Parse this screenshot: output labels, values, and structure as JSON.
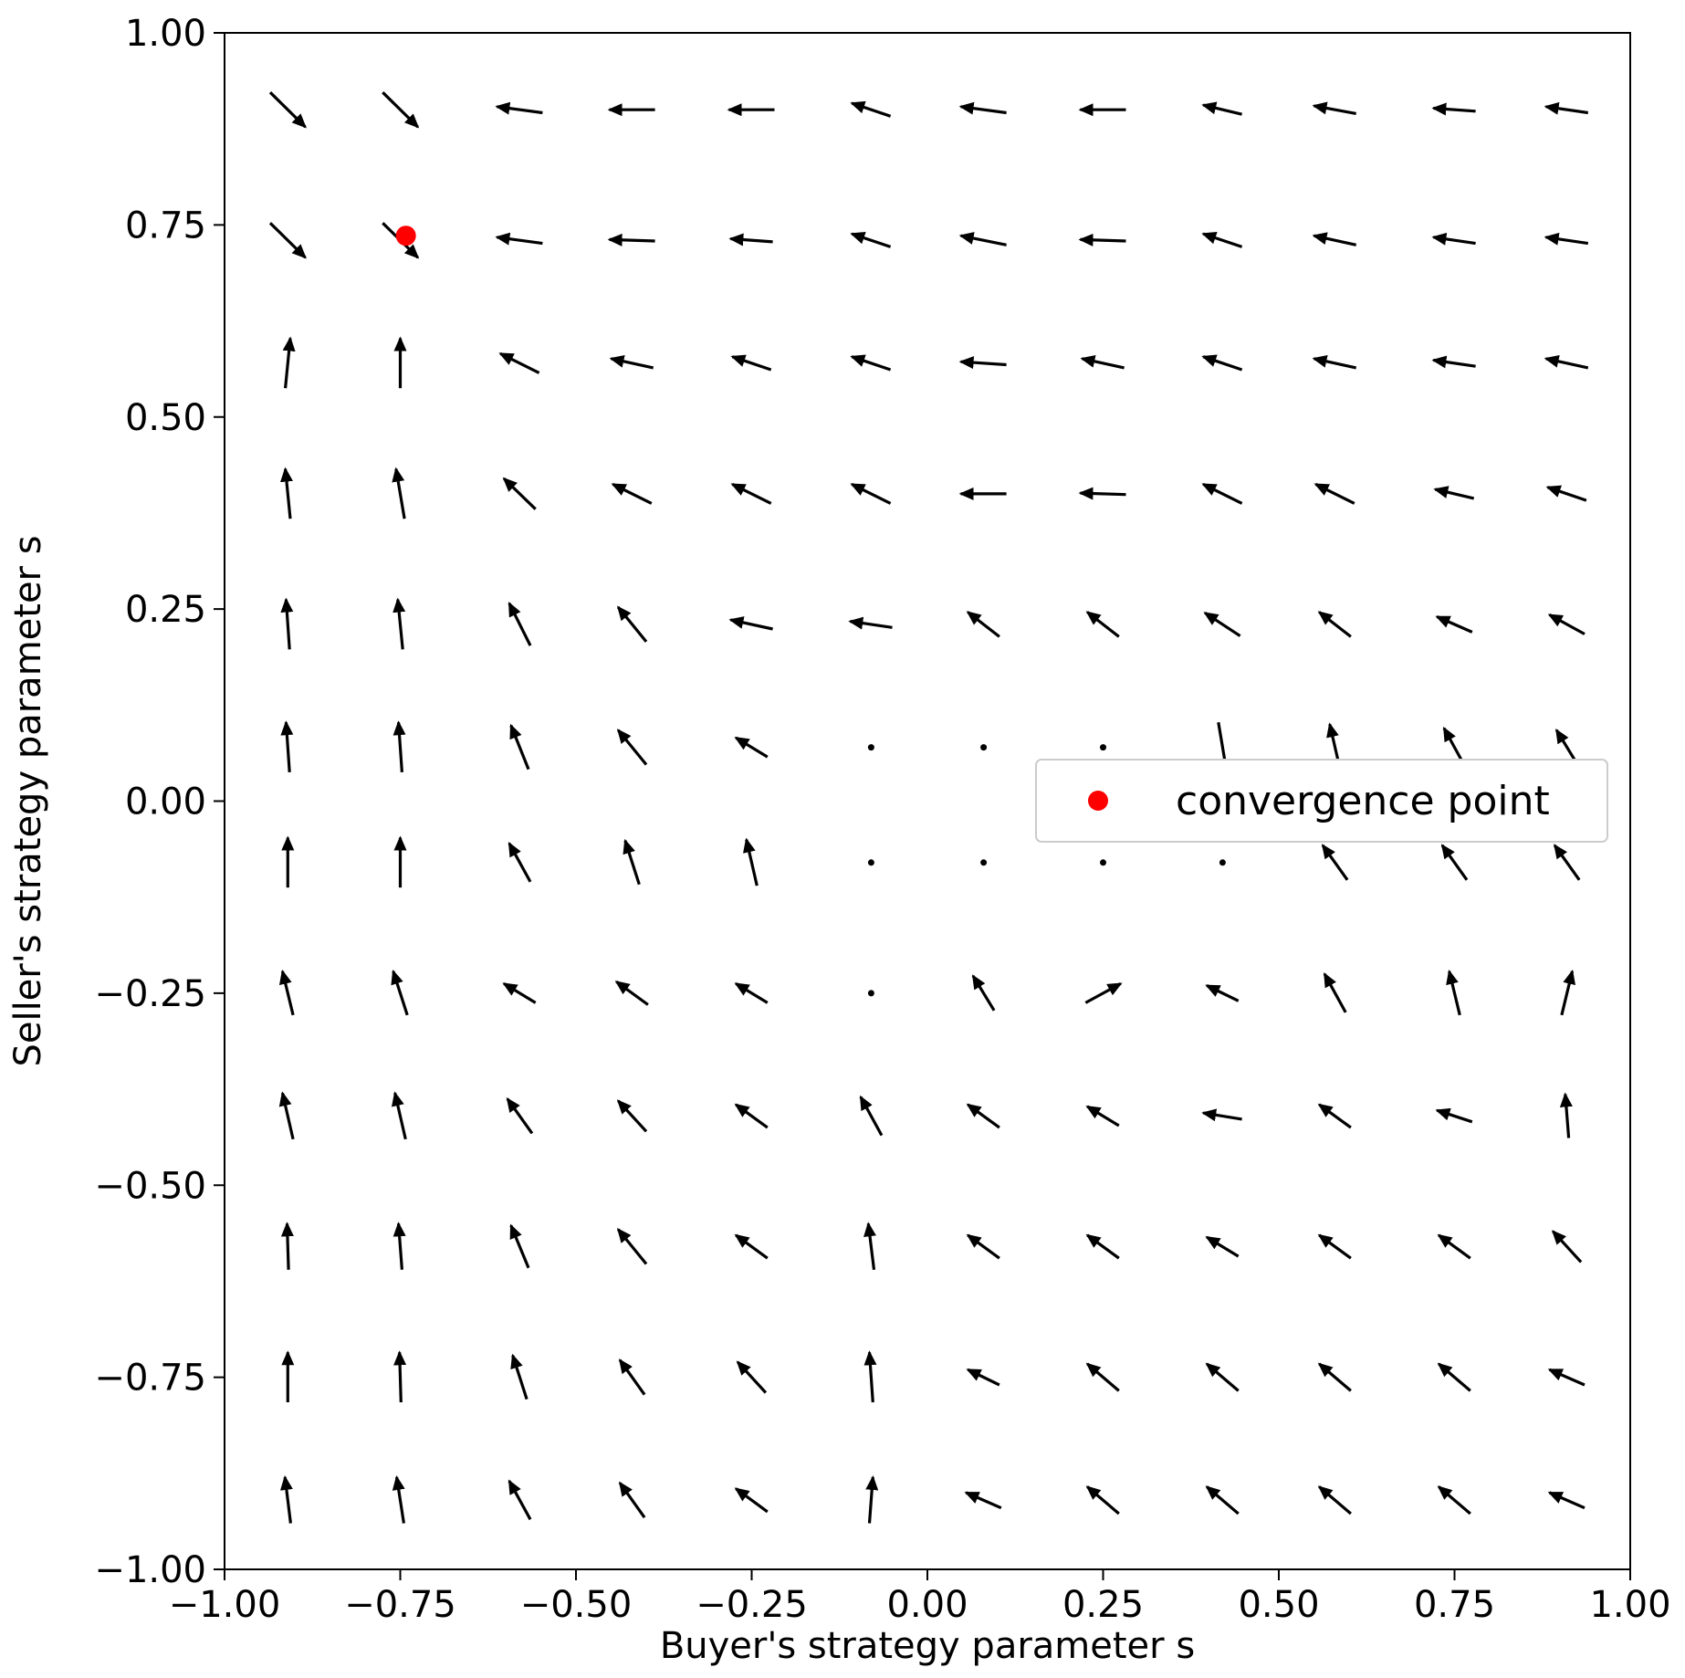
{
  "chart_data": {
    "type": "quiver",
    "xlabel": "Buyer's strategy parameter s",
    "ylabel": "Seller's strategy parameter s",
    "xlim": [
      -1.0,
      1.0
    ],
    "ylim": [
      -1.0,
      1.0
    ],
    "xticks": [
      "−1.00",
      "−0.75",
      "−0.50",
      "−0.25",
      "0.00",
      "0.25",
      "0.50",
      "0.75",
      "1.00"
    ],
    "yticks": [
      "−1.00",
      "−0.75",
      "−0.50",
      "−0.25",
      "0.00",
      "0.25",
      "0.50",
      "0.75",
      "1.00"
    ],
    "grid": false,
    "legend": {
      "placement": "center-right",
      "entries": [
        {
          "label": "convergence point",
          "color": "#ff0000"
        }
      ]
    },
    "x": [
      -0.91,
      -0.75,
      -0.58,
      -0.42,
      -0.25,
      -0.08,
      0.08,
      0.25,
      0.42,
      0.58,
      0.75,
      0.91
    ],
    "y": [
      0.9,
      0.73,
      0.57,
      0.4,
      0.23,
      0.07,
      -0.08,
      -0.25,
      -0.41,
      -0.58,
      -0.75,
      -0.91
    ],
    "arrow_color": "#000000",
    "vectors": [
      [
        [
          0.05,
          -0.045
        ],
        [
          0.05,
          -0.045
        ],
        [
          -0.065,
          0.008
        ],
        [
          -0.065,
          0
        ],
        [
          -0.065,
          0
        ],
        [
          -0.055,
          0.017
        ],
        [
          -0.065,
          0.008
        ],
        [
          -0.065,
          0
        ],
        [
          -0.055,
          0.012
        ],
        [
          -0.06,
          0.01
        ],
        [
          -0.06,
          0.004
        ],
        [
          -0.06,
          0.008
        ]
      ],
      [
        [
          0.05,
          -0.045
        ],
        [
          0.05,
          -0.045
        ],
        [
          -0.065,
          0.008
        ],
        [
          -0.065,
          0.002
        ],
        [
          -0.06,
          0.004
        ],
        [
          -0.055,
          0.017
        ],
        [
          -0.065,
          0.012
        ],
        [
          -0.065,
          0.002
        ],
        [
          -0.055,
          0.017
        ],
        [
          -0.06,
          0.012
        ],
        [
          -0.06,
          0.008
        ],
        [
          -0.06,
          0.008
        ]
      ],
      [
        [
          0.007,
          0.065
        ],
        [
          0,
          0.065
        ],
        [
          -0.055,
          0.025
        ],
        [
          -0.06,
          0.012
        ],
        [
          -0.055,
          0.017
        ],
        [
          -0.055,
          0.017
        ],
        [
          -0.065,
          0.004
        ],
        [
          -0.06,
          0.012
        ],
        [
          -0.055,
          0.017
        ],
        [
          -0.06,
          0.012
        ],
        [
          -0.06,
          0.008
        ],
        [
          -0.06,
          0.012
        ]
      ],
      [
        [
          -0.007,
          0.065
        ],
        [
          -0.012,
          0.065
        ],
        [
          -0.045,
          0.04
        ],
        [
          -0.055,
          0.025
        ],
        [
          -0.055,
          0.025
        ],
        [
          -0.055,
          0.025
        ],
        [
          -0.065,
          0
        ],
        [
          -0.065,
          0.002
        ],
        [
          -0.055,
          0.025
        ],
        [
          -0.055,
          0.025
        ],
        [
          -0.055,
          0.012
        ],
        [
          -0.055,
          0.017
        ]
      ],
      [
        [
          -0.005,
          0.065
        ],
        [
          -0.007,
          0.065
        ],
        [
          -0.03,
          0.055
        ],
        [
          -0.04,
          0.045
        ],
        [
          -0.06,
          0.012
        ],
        [
          -0.06,
          0.008
        ],
        [
          -0.045,
          0.032
        ],
        [
          -0.045,
          0.032
        ],
        [
          -0.05,
          0.03
        ],
        [
          -0.045,
          0.032
        ],
        [
          -0.05,
          0.02
        ],
        [
          -0.05,
          0.025
        ]
      ],
      [
        [
          -0.005,
          0.065
        ],
        [
          -0.005,
          0.065
        ],
        [
          -0.025,
          0.057
        ],
        [
          -0.04,
          0.045
        ],
        [
          -0.045,
          0.025
        ],
        [
          0,
          0
        ],
        [
          0,
          0
        ],
        [
          0,
          0
        ],
        [
          0.012,
          -0.065
        ],
        [
          -0.015,
          0.06
        ],
        [
          -0.03,
          0.05
        ],
        [
          -0.03,
          0.045
        ]
      ],
      [
        [
          0,
          0.065
        ],
        [
          0,
          0.065
        ],
        [
          -0.03,
          0.05
        ],
        [
          -0.02,
          0.057
        ],
        [
          -0.015,
          0.06
        ],
        [
          0,
          0
        ],
        [
          0,
          0
        ],
        [
          0,
          0
        ],
        [
          0,
          0
        ],
        [
          -0.035,
          0.045
        ],
        [
          -0.035,
          0.045
        ],
        [
          -0.035,
          0.045
        ]
      ],
      [
        [
          -0.015,
          0.057
        ],
        [
          -0.02,
          0.057
        ],
        [
          -0.045,
          0.025
        ],
        [
          -0.045,
          0.03
        ],
        [
          -0.045,
          0.025
        ],
        [
          0,
          0
        ],
        [
          -0.03,
          0.045
        ],
        [
          0.05,
          0.025
        ],
        [
          -0.045,
          0.02
        ],
        [
          -0.03,
          0.05
        ],
        [
          -0.015,
          0.057
        ],
        [
          0.015,
          0.057
        ]
      ],
      [
        [
          -0.015,
          0.06
        ],
        [
          -0.015,
          0.06
        ],
        [
          -0.035,
          0.045
        ],
        [
          -0.04,
          0.04
        ],
        [
          -0.045,
          0.03
        ],
        [
          -0.03,
          0.05
        ],
        [
          -0.045,
          0.03
        ],
        [
          -0.045,
          0.025
        ],
        [
          -0.055,
          0.008
        ],
        [
          -0.045,
          0.03
        ],
        [
          -0.05,
          0.015
        ],
        [
          -0.005,
          0.057
        ]
      ],
      [
        [
          -0.002,
          0.06
        ],
        [
          -0.005,
          0.06
        ],
        [
          -0.025,
          0.055
        ],
        [
          -0.04,
          0.045
        ],
        [
          -0.045,
          0.03
        ],
        [
          -0.008,
          0.06
        ],
        [
          -0.045,
          0.03
        ],
        [
          -0.045,
          0.03
        ],
        [
          -0.045,
          0.025
        ],
        [
          -0.045,
          0.03
        ],
        [
          -0.045,
          0.03
        ],
        [
          -0.04,
          0.04
        ]
      ],
      [
        [
          0,
          0.065
        ],
        [
          -0.002,
          0.065
        ],
        [
          -0.02,
          0.057
        ],
        [
          -0.035,
          0.045
        ],
        [
          -0.04,
          0.04
        ],
        [
          -0.005,
          0.065
        ],
        [
          -0.045,
          0.02
        ],
        [
          -0.045,
          0.035
        ],
        [
          -0.045,
          0.035
        ],
        [
          -0.045,
          0.035
        ],
        [
          -0.045,
          0.035
        ],
        [
          -0.05,
          0.02
        ]
      ],
      [
        [
          -0.008,
          0.06
        ],
        [
          -0.01,
          0.06
        ],
        [
          -0.03,
          0.05
        ],
        [
          -0.035,
          0.045
        ],
        [
          -0.045,
          0.03
        ],
        [
          0.005,
          0.06
        ],
        [
          -0.05,
          0.02
        ],
        [
          -0.045,
          0.035
        ],
        [
          -0.045,
          0.035
        ],
        [
          -0.045,
          0.035
        ],
        [
          -0.045,
          0.035
        ],
        [
          -0.05,
          0.02
        ]
      ]
    ],
    "convergence_point": {
      "label": "convergence point",
      "x": -0.742,
      "y": 0.736,
      "color": "#ff0000"
    }
  }
}
